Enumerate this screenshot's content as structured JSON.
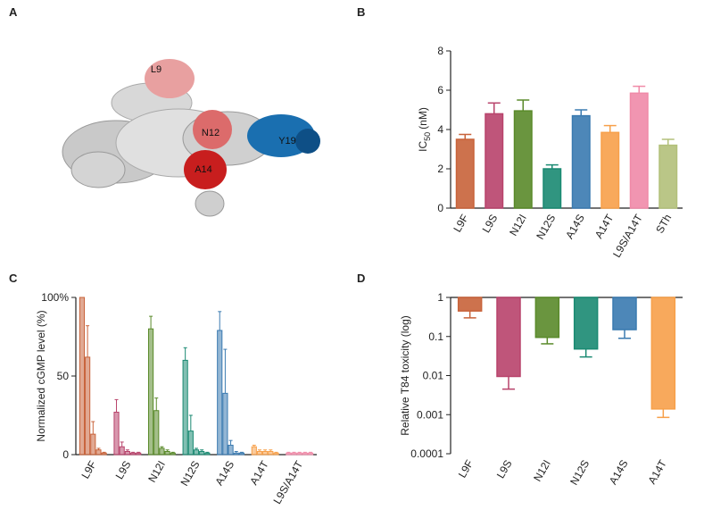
{
  "panel_labels": [
    "A",
    "B",
    "C",
    "D"
  ],
  "molecule": {
    "residue_labels": [
      "L9",
      "N12",
      "Y19",
      "A14"
    ]
  },
  "chart_data": [
    {
      "type": "bar",
      "y_label": {
        "main": "IC",
        "sub": "50",
        "unit": "(nM)"
      },
      "categories": [
        "L9F",
        "L9S",
        "N12I",
        "N12S",
        "A14S",
        "A14T",
        "L9S/A14T",
        "STh"
      ],
      "values": [
        3.5,
        4.8,
        4.95,
        2.0,
        4.7,
        3.85,
        5.85,
        3.2
      ],
      "errors": [
        0.25,
        0.55,
        0.55,
        0.2,
        0.3,
        0.35,
        0.35,
        0.3
      ],
      "colors": [
        "#c8633a",
        "#b8436b",
        "#5a8a2a",
        "#1a8a72",
        "#3a7ab0",
        "#f7a04a",
        "#f08aa8",
        "#b2c07a"
      ],
      "ylim": [
        0,
        8
      ],
      "yticks": [
        0,
        2,
        4,
        6,
        8
      ]
    },
    {
      "type": "grouped_bar",
      "y_label": "Normalized cGMP level (%)",
      "categories": [
        "L9F",
        "L9S",
        "N12I",
        "N12S",
        "A14S",
        "A14T",
        "L9S/A14T"
      ],
      "values": [
        [
          100,
          62,
          13,
          3,
          1
        ],
        [
          27,
          5,
          2,
          1,
          1
        ],
        [
          80,
          28,
          4,
          2,
          1
        ],
        [
          60,
          15,
          3,
          2,
          1
        ],
        [
          79,
          39,
          6,
          1,
          1
        ],
        [
          5,
          2,
          2,
          2,
          1
        ],
        [
          1,
          1,
          1,
          1,
          1
        ]
      ],
      "errors": [
        [
          0,
          20,
          8,
          1,
          0.5
        ],
        [
          8,
          3,
          1,
          0.5,
          0.5
        ],
        [
          8,
          8,
          1,
          1,
          0.5
        ],
        [
          8,
          10,
          1,
          1,
          0.5
        ],
        [
          12,
          28,
          3,
          1,
          0.5
        ],
        [
          1,
          1,
          1,
          1,
          0.5
        ],
        [
          0.5,
          0.5,
          0.5,
          0.5,
          0.5
        ]
      ],
      "colors": [
        "#c8633a",
        "#b8436b",
        "#5a8a2a",
        "#1a8a72",
        "#3a7ab0",
        "#f7a04a",
        "#f08aa8"
      ],
      "ylim": [
        0,
        100
      ],
      "yticks": [
        0,
        50,
        {
          "value": 100,
          "label": "100%"
        }
      ]
    },
    {
      "type": "bar",
      "log_scale": true,
      "y_label": "Relative T84 toxicity (log)",
      "categories": [
        "L9F",
        "L9S",
        "N12I",
        "N12S",
        "A14S",
        "A14T"
      ],
      "values": [
        0.45,
        0.0095,
        0.095,
        0.048,
        0.15,
        0.0014
      ],
      "errors": [
        0.15,
        0.005,
        0.03,
        0.018,
        0.06,
        0.00055
      ],
      "colors": [
        "#c8633a",
        "#b8436b",
        "#5a8a2a",
        "#1a8a72",
        "#3a7ab0",
        "#f7a04a"
      ],
      "ylim": [
        0.0001,
        1
      ],
      "yticks": [
        0.0001,
        0.001,
        0.01,
        0.1,
        1
      ]
    }
  ]
}
